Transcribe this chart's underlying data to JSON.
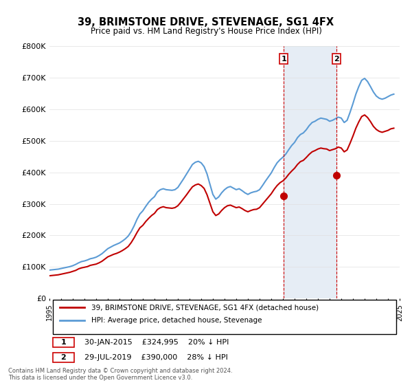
{
  "title": "39, BRIMSTONE DRIVE, STEVENAGE, SG1 4FX",
  "subtitle": "Price paid vs. HM Land Registry's House Price Index (HPI)",
  "ylabel": "",
  "xlabel": "",
  "ylim": [
    0,
    800000
  ],
  "yticks": [
    0,
    100000,
    200000,
    300000,
    400000,
    500000,
    600000,
    700000,
    800000
  ],
  "ytick_labels": [
    "£0",
    "£100K",
    "£200K",
    "£300K",
    "£400K",
    "£500K",
    "£600K",
    "£700K",
    "£800K"
  ],
  "hpi_color": "#5b9bd5",
  "price_color": "#c00000",
  "sale1_date": 2015.08,
  "sale1_price": 324995,
  "sale1_label": "1",
  "sale2_date": 2019.58,
  "sale2_price": 390000,
  "sale2_label": "2",
  "sale1_info": "30-JAN-2015    £324,995    20% ↓ HPI",
  "sale2_info": "29-JUL-2019    £390,000    28% ↓ HPI",
  "legend_label1": "39, BRIMSTONE DRIVE, STEVENAGE, SG1 4FX (detached house)",
  "legend_label2": "HPI: Average price, detached house, Stevenage",
  "footer": "Contains HM Land Registry data © Crown copyright and database right 2024.\nThis data is licensed under the Open Government Licence v3.0.",
  "background_color": "#ffffff",
  "shade_color": "#dce6f1",
  "hpi_data": {
    "years": [
      1995.0,
      1995.25,
      1995.5,
      1995.75,
      1996.0,
      1996.25,
      1996.5,
      1996.75,
      1997.0,
      1997.25,
      1997.5,
      1997.75,
      1998.0,
      1998.25,
      1998.5,
      1998.75,
      1999.0,
      1999.25,
      1999.5,
      1999.75,
      2000.0,
      2000.25,
      2000.5,
      2000.75,
      2001.0,
      2001.25,
      2001.5,
      2001.75,
      2002.0,
      2002.25,
      2002.5,
      2002.75,
      2003.0,
      2003.25,
      2003.5,
      2003.75,
      2004.0,
      2004.25,
      2004.5,
      2004.75,
      2005.0,
      2005.25,
      2005.5,
      2005.75,
      2006.0,
      2006.25,
      2006.5,
      2006.75,
      2007.0,
      2007.25,
      2007.5,
      2007.75,
      2008.0,
      2008.25,
      2008.5,
      2008.75,
      2009.0,
      2009.25,
      2009.5,
      2009.75,
      2010.0,
      2010.25,
      2010.5,
      2010.75,
      2011.0,
      2011.25,
      2011.5,
      2011.75,
      2012.0,
      2012.25,
      2012.5,
      2012.75,
      2013.0,
      2013.25,
      2013.5,
      2013.75,
      2014.0,
      2014.25,
      2014.5,
      2014.75,
      2015.0,
      2015.25,
      2015.5,
      2015.75,
      2016.0,
      2016.25,
      2016.5,
      2016.75,
      2017.0,
      2017.25,
      2017.5,
      2017.75,
      2018.0,
      2018.25,
      2018.5,
      2018.75,
      2019.0,
      2019.25,
      2019.5,
      2019.75,
      2020.0,
      2020.25,
      2020.5,
      2020.75,
      2021.0,
      2021.25,
      2021.5,
      2021.75,
      2022.0,
      2022.25,
      2022.5,
      2022.75,
      2023.0,
      2023.25,
      2023.5,
      2023.75,
      2024.0,
      2024.25,
      2024.5
    ],
    "values": [
      90000,
      91000,
      92000,
      93000,
      95000,
      97000,
      99000,
      101000,
      104000,
      108000,
      113000,
      117000,
      119000,
      122000,
      126000,
      128000,
      131000,
      136000,
      142000,
      150000,
      158000,
      163000,
      168000,
      172000,
      176000,
      182000,
      189000,
      198000,
      212000,
      230000,
      251000,
      268000,
      278000,
      292000,
      305000,
      315000,
      323000,
      338000,
      345000,
      348000,
      345000,
      344000,
      343000,
      345000,
      352000,
      366000,
      380000,
      395000,
      410000,
      425000,
      432000,
      435000,
      430000,
      418000,
      395000,
      362000,
      330000,
      315000,
      322000,
      335000,
      345000,
      352000,
      355000,
      350000,
      345000,
      348000,
      342000,
      335000,
      330000,
      335000,
      338000,
      340000,
      345000,
      358000,
      372000,
      385000,
      398000,
      415000,
      430000,
      440000,
      448000,
      458000,
      472000,
      485000,
      495000,
      510000,
      520000,
      525000,
      535000,
      548000,
      558000,
      562000,
      568000,
      572000,
      570000,
      568000,
      562000,
      565000,
      570000,
      575000,
      572000,
      558000,
      565000,
      590000,
      618000,
      648000,
      672000,
      692000,
      698000,
      688000,
      672000,
      655000,
      642000,
      635000,
      632000,
      635000,
      640000,
      645000,
      648000
    ]
  },
  "price_data": {
    "years": [
      1995.0,
      1995.25,
      1995.5,
      1995.75,
      1996.0,
      1996.25,
      1996.5,
      1996.75,
      1997.0,
      1997.25,
      1997.5,
      1997.75,
      1998.0,
      1998.25,
      1998.5,
      1998.75,
      1999.0,
      1999.25,
      1999.5,
      1999.75,
      2000.0,
      2000.25,
      2000.5,
      2000.75,
      2001.0,
      2001.25,
      2001.5,
      2001.75,
      2002.0,
      2002.25,
      2002.5,
      2002.75,
      2003.0,
      2003.25,
      2003.5,
      2003.75,
      2004.0,
      2004.25,
      2004.5,
      2004.75,
      2005.0,
      2005.25,
      2005.5,
      2005.75,
      2006.0,
      2006.25,
      2006.5,
      2006.75,
      2007.0,
      2007.25,
      2007.5,
      2007.75,
      2008.0,
      2008.25,
      2008.5,
      2008.75,
      2009.0,
      2009.25,
      2009.5,
      2009.75,
      2010.0,
      2010.25,
      2010.5,
      2010.75,
      2011.0,
      2011.25,
      2011.5,
      2011.75,
      2012.0,
      2012.25,
      2012.5,
      2012.75,
      2013.0,
      2013.25,
      2013.5,
      2013.75,
      2014.0,
      2014.25,
      2014.5,
      2014.75,
      2015.0,
      2015.25,
      2015.5,
      2015.75,
      2016.0,
      2016.25,
      2016.5,
      2016.75,
      2017.0,
      2017.25,
      2017.5,
      2017.75,
      2018.0,
      2018.25,
      2018.5,
      2018.75,
      2019.0,
      2019.25,
      2019.5,
      2019.75,
      2020.0,
      2020.25,
      2020.5,
      2020.75,
      2021.0,
      2021.25,
      2021.5,
      2021.75,
      2022.0,
      2022.25,
      2022.5,
      2022.75,
      2023.0,
      2023.25,
      2023.5,
      2023.75,
      2024.0,
      2024.25,
      2024.5
    ],
    "values": [
      72000,
      73000,
      74000,
      75000,
      77000,
      79000,
      81000,
      83000,
      86000,
      89000,
      94000,
      97000,
      99000,
      101000,
      105000,
      107000,
      109000,
      113000,
      118000,
      125000,
      132000,
      136000,
      140000,
      143000,
      147000,
      152000,
      158000,
      165000,
      177000,
      192000,
      209000,
      224000,
      232000,
      244000,
      254000,
      263000,
      270000,
      282000,
      288000,
      291000,
      288000,
      287000,
      286000,
      288000,
      294000,
      305000,
      317000,
      329000,
      342000,
      354000,
      360000,
      363000,
      358000,
      349000,
      329000,
      302000,
      275000,
      263000,
      268000,
      279000,
      288000,
      294000,
      296000,
      292000,
      288000,
      290000,
      285000,
      279000,
      275000,
      279000,
      282000,
      283000,
      288000,
      299000,
      310000,
      321000,
      332000,
      346000,
      358000,
      367000,
      373000,
      382000,
      394000,
      404000,
      413000,
      425000,
      434000,
      438000,
      447000,
      457000,
      465000,
      469000,
      474000,
      477000,
      475000,
      474000,
      469000,
      472000,
      475000,
      480000,
      477000,
      465000,
      471000,
      492000,
      515000,
      540000,
      560000,
      577000,
      582000,
      574000,
      561000,
      546000,
      536000,
      530000,
      527000,
      530000,
      533000,
      538000,
      540000
    ]
  }
}
